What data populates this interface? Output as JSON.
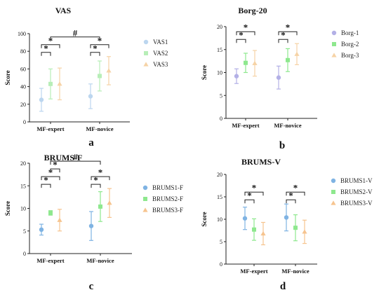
{
  "chart_data": [
    {
      "type": "scatter",
      "panel_label": "a",
      "title": "VAS",
      "ylabel": "Score",
      "ylim": [
        0,
        100
      ],
      "yticks": [
        0,
        20,
        40,
        60,
        80,
        100
      ],
      "categories": [
        "MF-expert",
        "MF-novice"
      ],
      "series": [
        {
          "name": "VAS1",
          "color": "#bcd6ef",
          "marker": "circle",
          "mean": [
            25,
            29
          ],
          "sd": [
            13,
            14
          ]
        },
        {
          "name": "VAS2",
          "color": "#b7eeb7",
          "marker": "square",
          "mean": [
            43,
            52
          ],
          "sd": [
            17,
            17
          ]
        },
        {
          "name": "VAS3",
          "color": "#f6d3a6",
          "marker": "triangle",
          "mean": [
            43,
            58
          ],
          "sd": [
            18,
            16
          ]
        }
      ],
      "annotations": [
        {
          "text": "*",
          "within": 0,
          "from": 0,
          "to": 1,
          "level": 1
        },
        {
          "text": "*",
          "within": 0,
          "from": 0,
          "to": 2,
          "level": 2
        },
        {
          "text": "*",
          "within": 1,
          "from": 0,
          "to": 1,
          "level": 1
        },
        {
          "text": "*",
          "within": 1,
          "from": 0,
          "to": 2,
          "level": 2
        },
        {
          "text": "#",
          "between": [
            0,
            1
          ],
          "level": 3
        }
      ]
    },
    {
      "type": "scatter",
      "panel_label": "b",
      "title": "Borg-20",
      "ylabel": "Score",
      "ylim": [
        0,
        20
      ],
      "yticks": [
        0,
        5,
        10,
        15,
        20
      ],
      "categories": [
        "MF-expert",
        "MF-novice"
      ],
      "series": [
        {
          "name": "Borg-1",
          "color": "#b3b0e6",
          "marker": "circle",
          "mean": [
            9.2,
            8.9
          ],
          "sd": [
            1.6,
            2.5
          ]
        },
        {
          "name": "Borg-2",
          "color": "#8ee88e",
          "marker": "square",
          "mean": [
            12.1,
            12.7
          ],
          "sd": [
            2.1,
            2.5
          ]
        },
        {
          "name": "Borg-3",
          "color": "#f6d3a6",
          "marker": "triangle",
          "mean": [
            12.0,
            14.0
          ],
          "sd": [
            2.8,
            2.3
          ]
        }
      ],
      "annotations": [
        {
          "text": "*",
          "within": 0,
          "from": 0,
          "to": 1,
          "level": 1
        },
        {
          "text": "*",
          "within": 0,
          "from": 0,
          "to": 2,
          "level": 2
        },
        {
          "text": "*",
          "within": 1,
          "from": 0,
          "to": 1,
          "level": 1
        },
        {
          "text": "*",
          "within": 1,
          "from": 0,
          "to": 2,
          "level": 2
        }
      ]
    },
    {
      "type": "scatter",
      "panel_label": "c",
      "title": "BRUMS-F",
      "ylabel": "Score",
      "ylim": [
        0,
        20
      ],
      "yticks": [
        0,
        5,
        10,
        15,
        20
      ],
      "categories": [
        "MF-expert",
        "MF-novice"
      ],
      "series": [
        {
          "name": "BRUMS1-F",
          "color": "#7fb3e3",
          "marker": "circle",
          "mean": [
            5.3,
            6.1
          ],
          "sd": [
            1.2,
            3.2
          ]
        },
        {
          "name": "BRUMS2-F",
          "color": "#8ee88e",
          "marker": "square",
          "mean": [
            9.0,
            10.4
          ],
          "sd": [
            0.5,
            3.3
          ]
        },
        {
          "name": "BRUMS3-F",
          "color": "#f6c48f",
          "marker": "triangle",
          "mean": [
            7.4,
            11.2
          ],
          "sd": [
            2.4,
            3.2
          ]
        }
      ],
      "annotations": [
        {
          "text": "*",
          "within": 0,
          "from": 0,
          "to": 1,
          "level": 1
        },
        {
          "text": "*",
          "within": 0,
          "from": 0,
          "to": 2,
          "level": 2
        },
        {
          "text": "*",
          "within": 0,
          "from": 1,
          "to": 2,
          "level": 3
        },
        {
          "text": "*",
          "within": 1,
          "from": 0,
          "to": 1,
          "level": 1
        },
        {
          "text": "*",
          "within": 1,
          "from": 0,
          "to": 2,
          "level": 2
        },
        {
          "text": "#",
          "between": [
            0,
            1
          ],
          "level": 4
        }
      ]
    },
    {
      "type": "scatter",
      "panel_label": "d",
      "title": "BRUMS-V",
      "ylabel": "Score",
      "ylim": [
        0,
        20
      ],
      "yticks": [
        0,
        5,
        10,
        15,
        20
      ],
      "categories": [
        "MF-expert",
        "MF-novice"
      ],
      "series": [
        {
          "name": "BRUMS1-V",
          "color": "#7fb3e3",
          "marker": "circle",
          "mean": [
            10.2,
            10.4
          ],
          "sd": [
            2.5,
            3.0
          ]
        },
        {
          "name": "BRUMS2-V",
          "color": "#8ee88e",
          "marker": "square",
          "mean": [
            7.7,
            8.1
          ],
          "sd": [
            2.4,
            2.9
          ]
        },
        {
          "name": "BRUMS3-V",
          "color": "#f6c48f",
          "marker": "triangle",
          "mean": [
            6.8,
            7.2
          ],
          "sd": [
            2.5,
            2.6
          ]
        }
      ],
      "annotations": [
        {
          "text": "*",
          "within": 0,
          "from": 0,
          "to": 1,
          "level": 1
        },
        {
          "text": "*",
          "within": 0,
          "from": 0,
          "to": 2,
          "level": 2
        },
        {
          "text": "*",
          "within": 1,
          "from": 0,
          "to": 1,
          "level": 1
        },
        {
          "text": "*",
          "within": 1,
          "from": 0,
          "to": 2,
          "level": 2
        }
      ]
    }
  ]
}
